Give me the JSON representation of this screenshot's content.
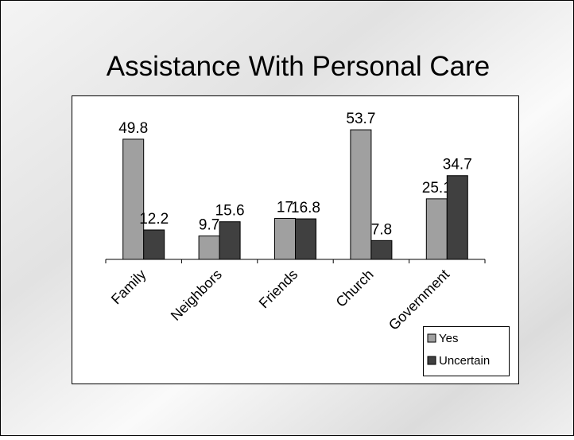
{
  "chart_data": {
    "type": "bar",
    "title": "Assistance With Personal Care",
    "categories": [
      "Family",
      "Neighbors",
      "Friends",
      "Church",
      "Government"
    ],
    "series": [
      {
        "name": "Yes",
        "color": "#a0a0a0",
        "values": [
          49.8,
          9.7,
          17,
          53.7,
          25.1
        ]
      },
      {
        "name": "Uncertain",
        "color": "#404040",
        "values": [
          12.2,
          15.6,
          16.8,
          7.8,
          34.7
        ]
      }
    ],
    "ylim": [
      0,
      60
    ],
    "legend": "bottom-right"
  }
}
